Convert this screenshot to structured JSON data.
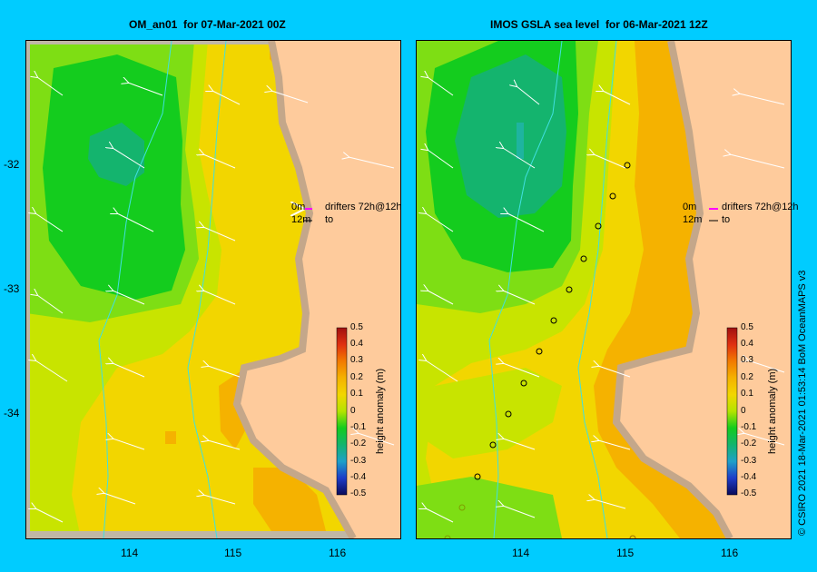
{
  "panels": [
    {
      "title": "OM_an01  for 07-Mar-2021 00Z",
      "legend": {
        "line1": "0m",
        "line2": "12m",
        "drifters_label": "drifters 72h@12h",
        "to_label": "to"
      },
      "colorbar": {
        "label": "height anomaly (m)",
        "ticks": [
          "0.5",
          "0.4",
          "0.3",
          "0.2",
          "0.1",
          "0",
          "-0.1",
          "-0.2",
          "-0.3",
          "-0.4",
          "-0.5"
        ]
      }
    },
    {
      "title": "IMOS GSLA sea level  for 06-Mar-2021 12Z",
      "legend": {
        "line1": "0m",
        "line2": "12m",
        "drifters_label": "drifters 72h@12h",
        "to_label": "to"
      },
      "colorbar": {
        "label": "height anomaly (m)",
        "ticks": [
          "0.5",
          "0.4",
          "0.3",
          "0.2",
          "0.1",
          "0",
          "-0.1",
          "-0.2",
          "-0.3",
          "-0.4",
          "-0.5"
        ]
      }
    }
  ],
  "y_ticks": [
    "-32",
    "-33",
    "-34"
  ],
  "x_ticks": [
    "114",
    "115",
    "116"
  ],
  "credit": "© CSIRO 2021   18-Mar-2021 01:53:14 BoM OceanMAPS v3",
  "colors": {
    "background": "#00ccff",
    "land": "#fecb9c",
    "coast": "#c4a78a",
    "bathymetry": "#40e0e0",
    "arrows": "#ffffff"
  }
}
